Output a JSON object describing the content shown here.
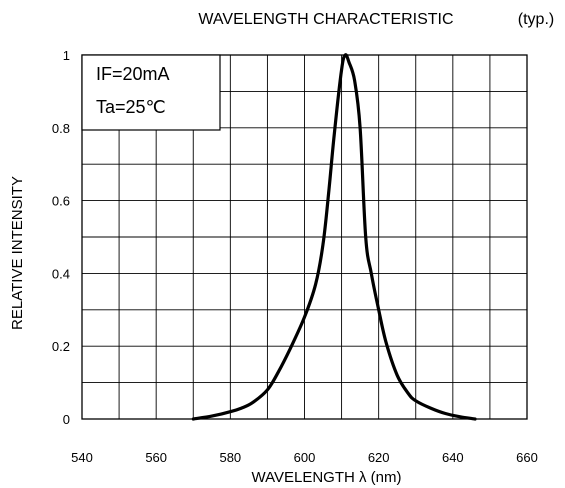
{
  "chart_data": {
    "type": "line",
    "title": "WAVELENGTH CHARACTERISTIC",
    "subtitle": "(typ.)",
    "xlabel": "WAVELENGTH  λ  (nm)",
    "ylabel": "RELATIVE INTENSITY",
    "xlim": [
      540,
      660
    ],
    "ylim": [
      0,
      1
    ],
    "x_ticks": [
      540,
      560,
      580,
      600,
      620,
      640,
      660
    ],
    "x_tick_labels": [
      "540",
      "560",
      "580",
      "600",
      "620",
      "640",
      "660"
    ],
    "y_ticks": [
      0,
      0.2,
      0.4,
      0.6,
      0.8,
      1
    ],
    "y_tick_labels": [
      "0",
      "0.2",
      "0.4",
      "0.6",
      "0.8",
      "1"
    ],
    "grid": true,
    "annotation": {
      "lines": [
        "IF=20mA",
        "Ta=25℃"
      ]
    },
    "series": [
      {
        "x": [
          570,
          575,
          580,
          583,
          586,
          590,
          593,
          596,
          600,
          603,
          605,
          606.5,
          608,
          610,
          611,
          612,
          613.5,
          615,
          616.5,
          618,
          620,
          622,
          625,
          628,
          630,
          634,
          638,
          642,
          646
        ],
        "y": [
          0,
          0.008,
          0.02,
          0.03,
          0.045,
          0.08,
          0.13,
          0.19,
          0.28,
          0.37,
          0.48,
          0.62,
          0.78,
          0.96,
          1.0,
          0.98,
          0.93,
          0.8,
          0.5,
          0.4,
          0.3,
          0.21,
          0.12,
          0.07,
          0.05,
          0.03,
          0.015,
          0.006,
          0
        ]
      }
    ]
  }
}
